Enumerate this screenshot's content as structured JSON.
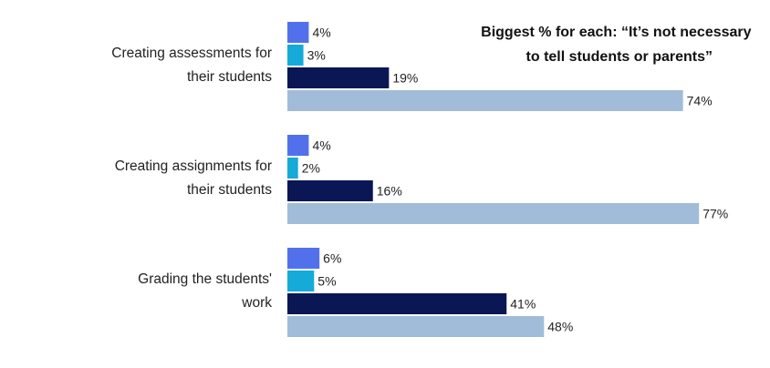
{
  "chart_data": {
    "type": "bar",
    "orientation": "horizontal",
    "annotation": [
      "Biggest % for each: “It’s not necessary",
      "to tell students or parents”"
    ],
    "categories": [
      [
        "Creating assessments for",
        "their students"
      ],
      [
        "Creating assignments for",
        "their students"
      ],
      [
        "Grading the students'",
        "work"
      ]
    ],
    "xlim": [
      0,
      100
    ],
    "grid": false,
    "legend": "none",
    "series": [
      {
        "color": "#5370ec",
        "values": [
          4,
          4,
          6
        ],
        "labels": [
          "4%",
          "4%",
          "6%"
        ]
      },
      {
        "color": "#15aad8",
        "values": [
          3,
          2,
          5
        ],
        "labels": [
          "3%",
          "2%",
          "5%"
        ]
      },
      {
        "color": "#0b1654",
        "values": [
          19,
          16,
          41
        ],
        "labels": [
          "19%",
          "16%",
          "41%"
        ]
      },
      {
        "color": "#a0bcd8",
        "values": [
          74,
          77,
          48
        ],
        "labels": [
          "74%",
          "77%",
          "48%"
        ]
      }
    ]
  }
}
